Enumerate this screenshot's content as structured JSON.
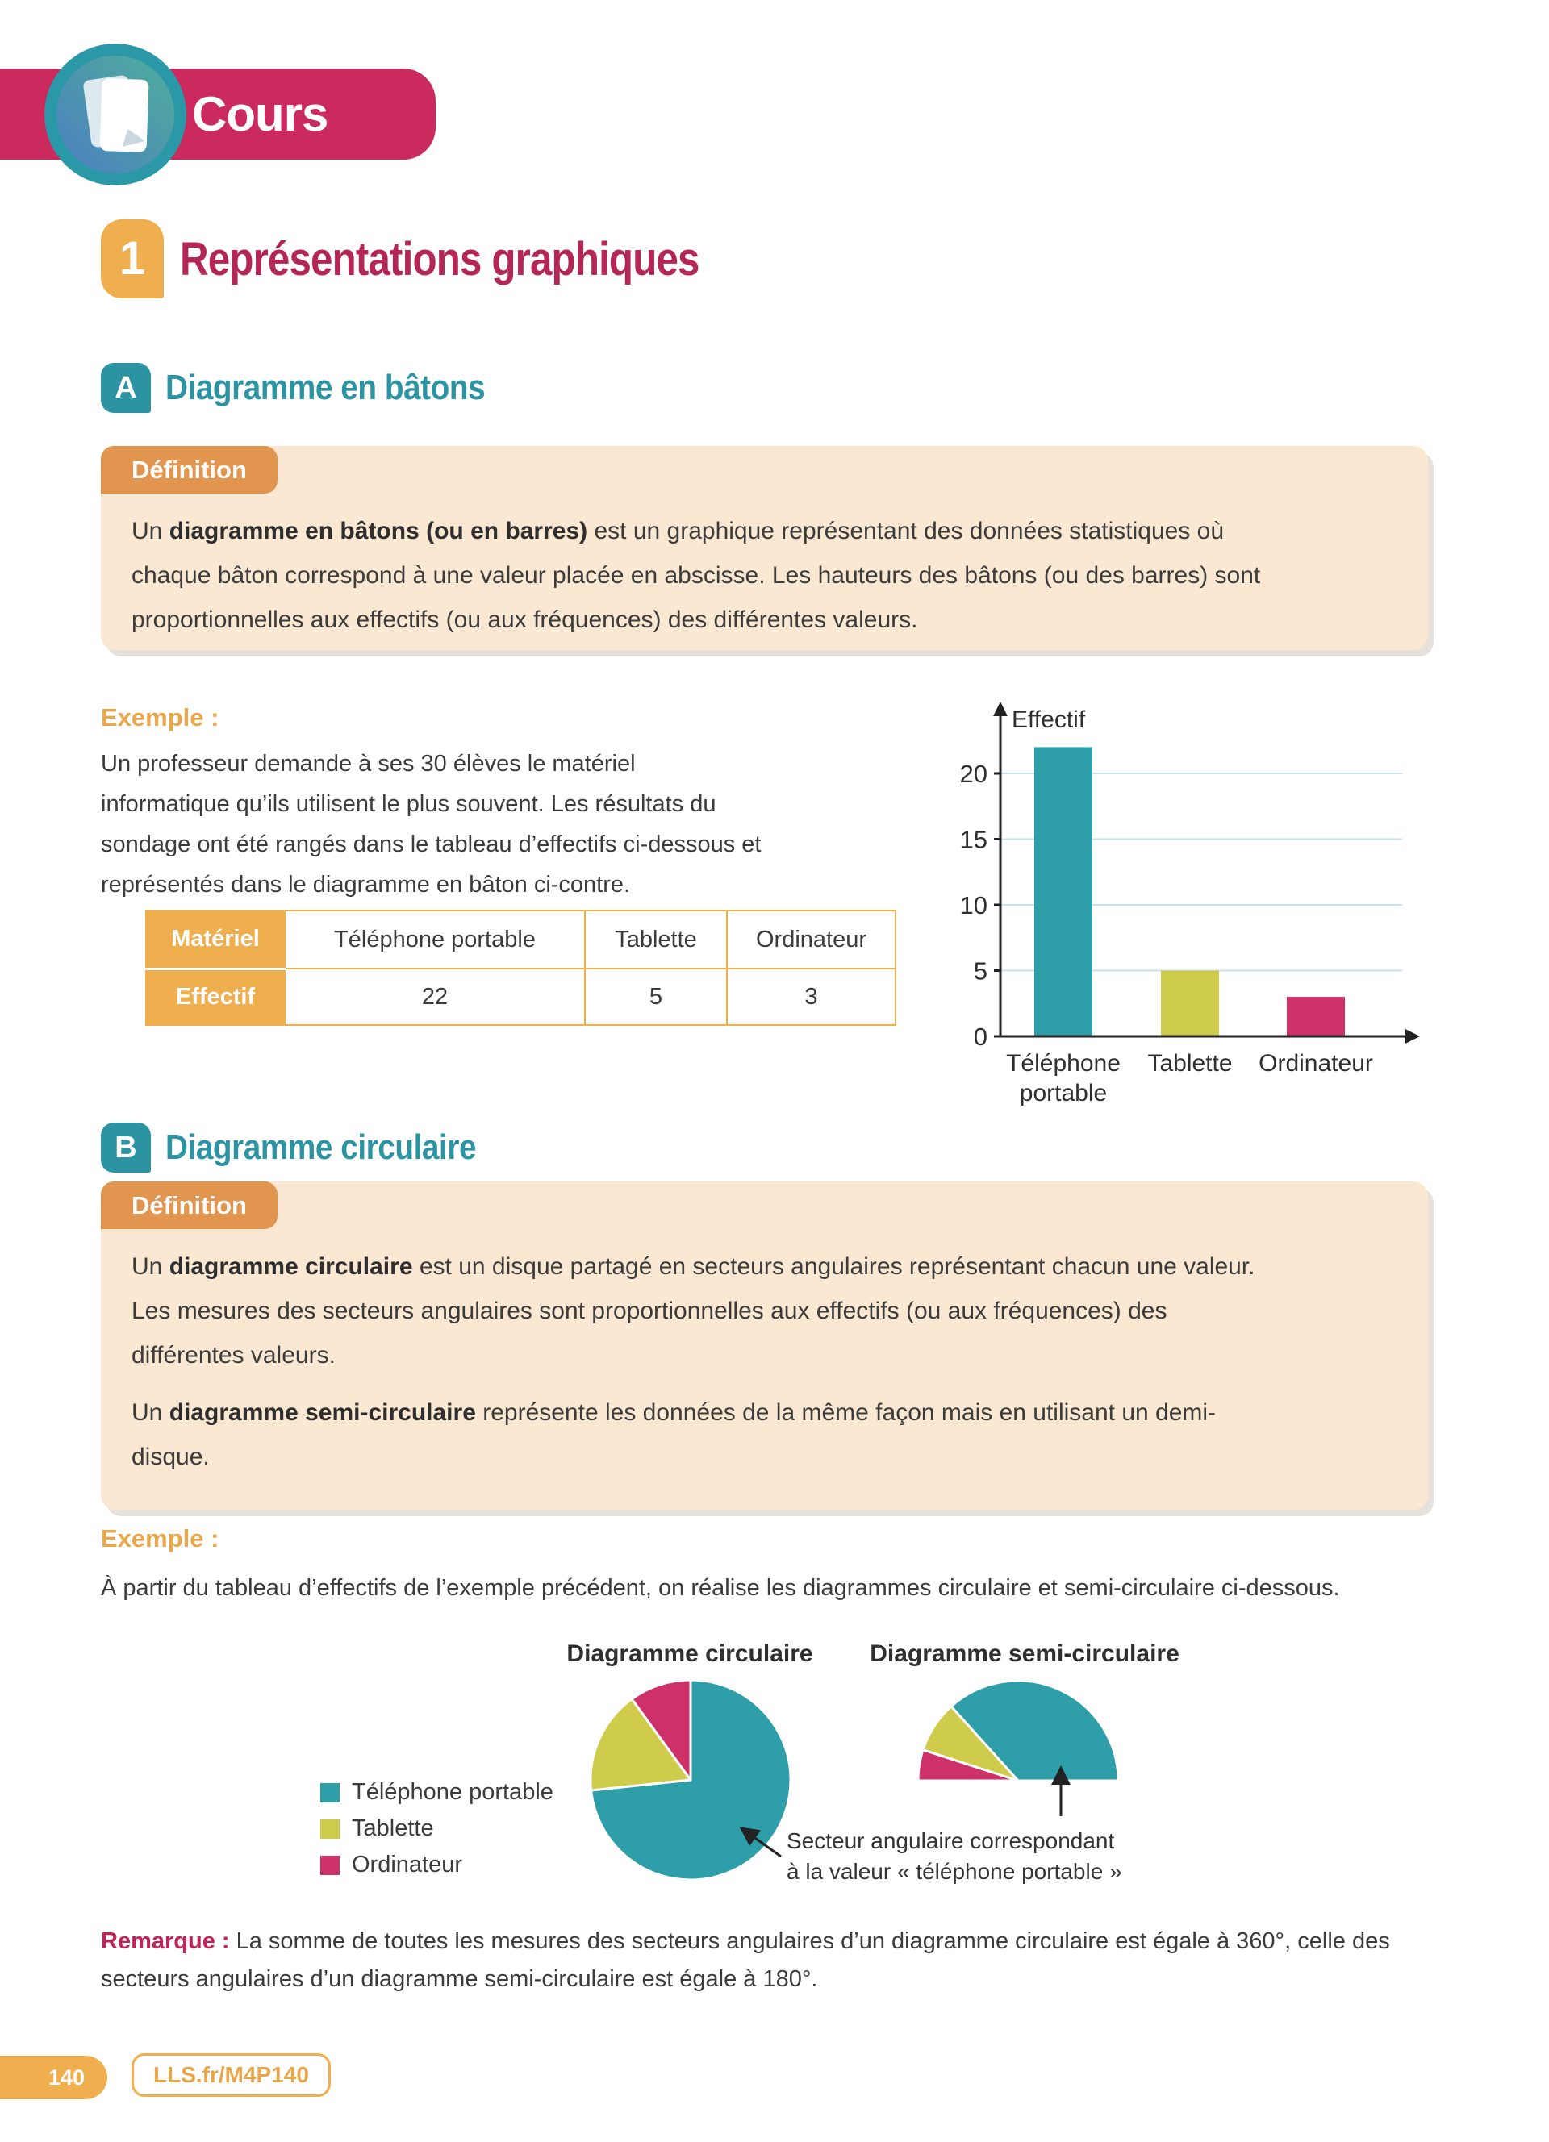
{
  "header": {
    "banner_label": "Cours"
  },
  "footer": {
    "page_number": "140",
    "link_label": "LLS.fr/M4P140"
  },
  "section1": {
    "number": "1",
    "title": "Représentations graphiques"
  },
  "sectionA": {
    "letter": "A",
    "title": "Diagramme en bâtons",
    "definition": {
      "tab": "Définition",
      "lead": "Un ",
      "term": "diagramme en bâtons (ou en barres)",
      "rest": " est un graphique représentant des données statistiques où chaque bâton correspond à une valeur placée en abscisse. Les hauteurs des bâtons (ou des barres) sont proportionnelles aux effectifs (ou aux fréquences) des différentes valeurs."
    },
    "example": {
      "label": "Exemple :",
      "text": "Un professeur demande à ses 30 élèves le matériel informatique qu’ils utilisent le plus souvent. Les résultats du sondage ont été rangés dans le tableau d’effectifs ci-dessous et représentés dans le diagramme en bâton ci-contre."
    },
    "table": {
      "row1_header": "Matériel",
      "row2_header": "Effectif",
      "columns": [
        "Téléphone portable",
        "Tablette",
        "Ordinateur"
      ],
      "values": [
        "22",
        "5",
        "3"
      ]
    }
  },
  "sectionB": {
    "letter": "B",
    "title": "Diagramme circulaire",
    "definition": {
      "tab": "Définition",
      "p1_lead": "Un ",
      "p1_term": "diagramme circulaire",
      "p1_rest": " est un disque partagé en secteurs angulaires représentant chacun une valeur. Les mesures des secteurs angulaires sont proportionnelles aux effectifs (ou aux fréquences) des différentes valeurs.",
      "p2_lead": "Un ",
      "p2_term": "diagramme semi-circulaire",
      "p2_rest": " représente les données de la même façon mais en utilisant un demi-disque."
    },
    "example": {
      "label": "Exemple :",
      "text": "À partir du tableau d’effectifs de l’exemple précédent, on réalise les diagrammes circulaire et semi-circulaire ci-dessous."
    },
    "annotation": {
      "line1": "Secteur angulaire correspondant",
      "line2": "à la valeur « téléphone portable »"
    }
  },
  "remark": {
    "label": "Remarque :",
    "text": " La somme de toutes les mesures des secteurs angulaires d’un diagramme circulaire est égale à 360°, celle des secteurs angulaires d’un diagramme semi-circulaire est égale à 180°."
  },
  "legend": {
    "items": [
      {
        "label": "Téléphone portable",
        "color": "#2E9EA9"
      },
      {
        "label": "Tablette",
        "color": "#D0CC4B"
      },
      {
        "label": "Ordinateur",
        "color": "#CE3069"
      }
    ]
  },
  "colors": {
    "banner_crimson": "#CB2A5E",
    "title_crimson": "#B32656",
    "remark_crimson": "#C02459",
    "teal_badge": "#2B93A2",
    "orange": "#EFAF4E",
    "orange_tab": "#E2954E",
    "cream_box": "#FBE8D2",
    "chart_teal": "#2E9EA9",
    "chart_yellow": "#D0CC4B",
    "chart_pink": "#CE3069",
    "grid": "#C4E3ED",
    "axis": "#222222",
    "body_text": "#3B3B3B"
  },
  "chart_data": [
    {
      "type": "bar",
      "title": "",
      "ylabel": "Effectif",
      "xlabel": "",
      "categories": [
        [
          "Téléphone",
          "portable"
        ],
        [
          "Tablette"
        ],
        [
          "Ordinateur"
        ]
      ],
      "values": [
        22,
        5,
        3
      ],
      "colors": [
        "#2E9EA9",
        "#D0CC4B",
        "#CE3069"
      ],
      "yticks": [
        0,
        5,
        10,
        15,
        20
      ],
      "ylim": [
        0,
        22
      ],
      "grid": true
    },
    {
      "type": "pie",
      "title": "Diagramme circulaire",
      "labels": [
        "Téléphone portable",
        "Tablette",
        "Ordinateur"
      ],
      "values": [
        22,
        5,
        3
      ],
      "angles_deg": [
        264,
        60,
        36
      ],
      "colors": [
        "#2E9EA9",
        "#D0CC4B",
        "#CE3069"
      ],
      "start_deg": 0,
      "span_deg": 360,
      "direction": "clockwise"
    },
    {
      "type": "semicircle-pie",
      "title": "Diagramme semi-circulaire",
      "labels": [
        "Ordinateur",
        "Tablette",
        "Téléphone portable"
      ],
      "values": [
        3,
        5,
        22
      ],
      "angles_deg": [
        18,
        30,
        132
      ],
      "colors": [
        "#CE3069",
        "#D0CC4B",
        "#2E9EA9"
      ],
      "start_deg": 270,
      "span_deg": 180,
      "direction": "clockwise"
    }
  ]
}
